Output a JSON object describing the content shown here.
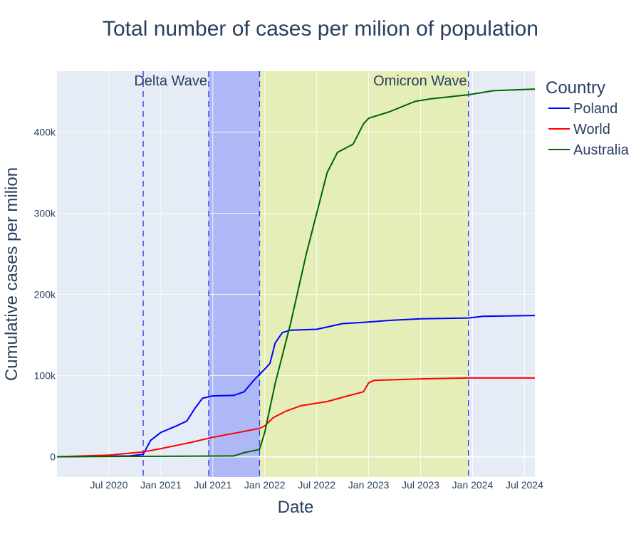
{
  "chart_data": {
    "type": "line",
    "title": "Total number of cases per milion of population",
    "xlabel": "Date",
    "ylabel": "Cumulative cases per milion",
    "x_range": [
      2020.0,
      2024.6
    ],
    "ylim": [
      -25000,
      475000
    ],
    "grid": true,
    "x_ticks": [
      {
        "value": 2020.5,
        "label": "Jul 2020"
      },
      {
        "value": 2021.0,
        "label": "Jan 2021"
      },
      {
        "value": 2021.5,
        "label": "Jul 2021"
      },
      {
        "value": 2022.0,
        "label": "Jan 2022"
      },
      {
        "value": 2022.5,
        "label": "Jul 2022"
      },
      {
        "value": 2023.0,
        "label": "Jan 2023"
      },
      {
        "value": 2023.5,
        "label": "Jul 2023"
      },
      {
        "value": 2024.0,
        "label": "Jan 2024"
      },
      {
        "value": 2024.5,
        "label": "Jul 2024"
      }
    ],
    "y_ticks": [
      {
        "value": 0,
        "label": "0"
      },
      {
        "value": 100000,
        "label": "100k"
      },
      {
        "value": 200000,
        "label": "200k"
      },
      {
        "value": 300000,
        "label": "300k"
      },
      {
        "value": 400000,
        "label": "400k"
      }
    ],
    "legend": {
      "title": "Country",
      "placement": "top-right-outside"
    },
    "series": [
      {
        "name": "Poland",
        "color": "#0000ff",
        "x": [
          2020.0,
          2020.7,
          2020.83,
          2020.9,
          2021.0,
          2021.15,
          2021.25,
          2021.33,
          2021.4,
          2021.5,
          2021.7,
          2021.8,
          2021.9,
          2022.0,
          2022.05,
          2022.1,
          2022.17,
          2022.25,
          2022.5,
          2022.75,
          2023.0,
          2023.2,
          2023.5,
          2023.96,
          2024.1,
          2024.6
        ],
        "values": [
          0,
          1000,
          3000,
          20000,
          30000,
          38000,
          44000,
          60000,
          72000,
          75000,
          75500,
          80000,
          95000,
          108000,
          115000,
          140000,
          153000,
          156000,
          157000,
          164000,
          166000,
          168000,
          170000,
          171000,
          173000,
          174000
        ]
      },
      {
        "name": "World",
        "color": "#ff0000",
        "x": [
          2020.0,
          2020.5,
          2020.83,
          2021.0,
          2021.3,
          2021.5,
          2021.75,
          2021.95,
          2022.0,
          2022.08,
          2022.2,
          2022.35,
          2022.6,
          2022.8,
          2022.95,
          2023.0,
          2023.05,
          2023.5,
          2023.96,
          2024.6
        ],
        "values": [
          0,
          2000,
          6000,
          10000,
          18000,
          24000,
          30000,
          35000,
          38000,
          48000,
          56000,
          63000,
          68000,
          75000,
          80000,
          91000,
          94000,
          96000,
          97000,
          97000
        ]
      },
      {
        "name": "Australia",
        "color": "#006400",
        "x": [
          2020.0,
          2021.7,
          2021.8,
          2021.95,
          2022.0,
          2022.1,
          2022.2,
          2022.25,
          2022.4,
          2022.5,
          2022.6,
          2022.7,
          2022.85,
          2022.95,
          2023.0,
          2023.2,
          2023.45,
          2023.6,
          2023.96,
          2024.2,
          2024.6
        ],
        "values": [
          0,
          1000,
          5000,
          9000,
          30000,
          90000,
          140000,
          165000,
          250000,
          300000,
          350000,
          375000,
          385000,
          410000,
          417000,
          425000,
          438000,
          441000,
          446000,
          451000,
          453000
        ]
      }
    ],
    "shapes": [
      {
        "type": "band",
        "name": "delta-wave-band",
        "x0": 2021.46,
        "x1": 2021.95,
        "color": "#7a83f5",
        "opacity": 0.5
      },
      {
        "type": "band",
        "name": "omicron-wave-band",
        "x0": 2021.95,
        "x1": 2023.96,
        "color": "#e6f07a",
        "opacity": 0.5
      },
      {
        "type": "vline",
        "x": 2020.83
      },
      {
        "type": "vline",
        "x": 2021.46
      },
      {
        "type": "vline",
        "x": 2021.95
      },
      {
        "type": "vline",
        "x": 2023.96
      }
    ],
    "annotations": [
      {
        "text": "Delta Wave",
        "x": 2021.46,
        "anchor": "end"
      },
      {
        "text": "Omicron Wave",
        "x": 2023.96,
        "anchor": "end"
      }
    ]
  }
}
